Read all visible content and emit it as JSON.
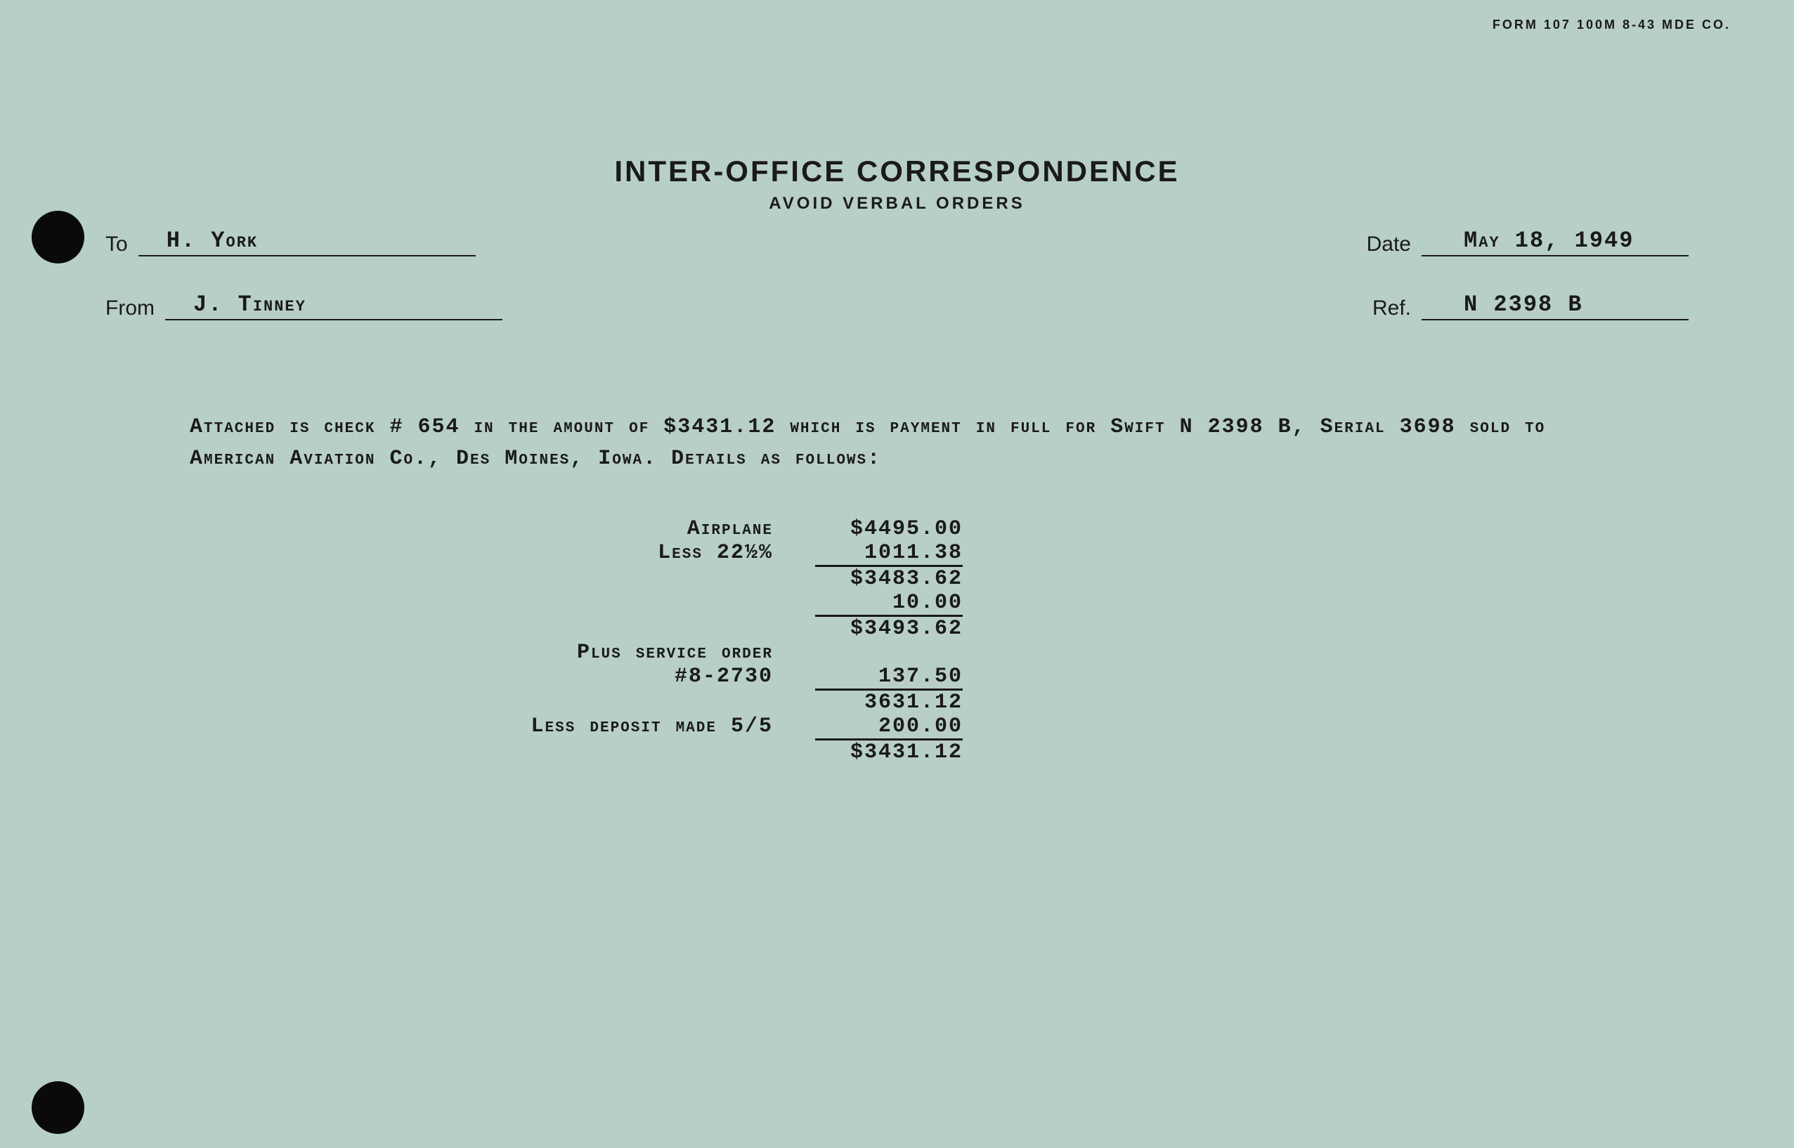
{
  "form_number": "FORM 107 100M 8-43 MDE CO.",
  "title": "INTER-OFFICE CORRESPONDENCE",
  "subtitle": "AVOID VERBAL ORDERS",
  "header": {
    "to_label": "To",
    "to_value": "H. York",
    "from_label": "From",
    "from_value": "J. Tinney",
    "date_label": "Date",
    "date_value": "May 18, 1949",
    "ref_label": "Ref.",
    "ref_value": "N 2398 B"
  },
  "body": {
    "paragraph": "Attached is check # 654 in the amount of $3431.12 which is payment in full for Swift N 2398 B, Serial 3698 sold to American Aviation Co., Des Moines, Iowa.    Details as follows:"
  },
  "calculation": {
    "rows": [
      {
        "label": "Airplane",
        "value": "$4495.00",
        "underline": false
      },
      {
        "label": "Less 22½%",
        "value": "1011.38",
        "underline": true
      },
      {
        "label": "",
        "value": "$3483.62",
        "underline": false
      },
      {
        "label": "",
        "value": "10.00",
        "underline": true
      },
      {
        "label": "",
        "value": "$3493.62",
        "underline": false
      },
      {
        "label": "Plus service order",
        "value": "",
        "underline": false
      },
      {
        "label": "#8-2730",
        "value": "137.50",
        "underline": true
      },
      {
        "label": "",
        "value": "3631.12",
        "underline": false
      },
      {
        "label": "Less deposit made 5/5",
        "value": "200.00",
        "underline": true
      },
      {
        "label": "",
        "value": "$3431.12",
        "underline": false
      }
    ]
  },
  "colors": {
    "background": "#b8cfc8",
    "text": "#1a1a1a",
    "hole": "#0a0a0a"
  },
  "typography": {
    "title_fontsize": 42,
    "subtitle_fontsize": 24,
    "body_fontsize": 30,
    "label_fontsize": 30
  }
}
